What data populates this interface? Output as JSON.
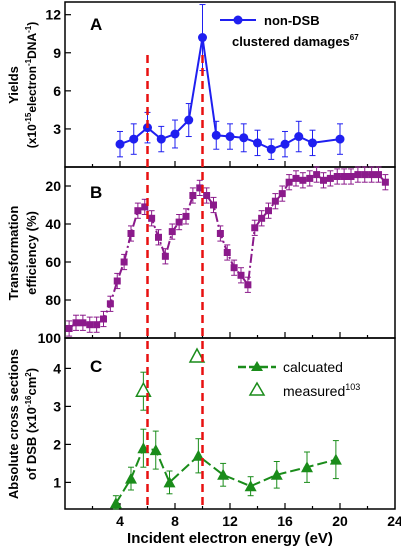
{
  "colors": {
    "blue": "#1f1ff0",
    "purple": "#8b1a8b",
    "green": "#1a8c1a",
    "red_dash": "#e81010",
    "frame": "#000000"
  },
  "chart_data": [
    {
      "panel": "A",
      "type": "line",
      "ylabel_line1": "Yields",
      "ylabel_line2_main": "(x10",
      "ylabel_line2_sup1": "-15",
      "ylabel_line2_mid": "electron",
      "ylabel_line2_sup2": "-1",
      "ylabel_line2_end": "DNA",
      "ylabel_line2_sup3": "-1",
      "ylabel_line2_close": ")",
      "xlim": [
        0,
        24
      ],
      "ylim": [
        0,
        13
      ],
      "yticks": [
        3,
        6,
        9,
        12
      ],
      "ytick_labels": [
        "3",
        "6",
        "9",
        "12"
      ],
      "legend": {
        "line1": "non-DSB",
        "line2": "clustered damages",
        "line2_sup": "67"
      },
      "series": [
        {
          "name": "non-DSB clustered damages",
          "marker": "circle",
          "x": [
            4,
            5,
            6,
            7,
            8,
            9,
            10,
            11,
            12,
            13,
            14,
            15,
            16,
            17,
            18,
            20
          ],
          "y": [
            1.8,
            2.2,
            3.1,
            2.2,
            2.6,
            3.7,
            10.2,
            2.5,
            2.4,
            2.3,
            1.9,
            1.4,
            1.8,
            2.4,
            1.9,
            2.2
          ],
          "err": [
            1.0,
            1.2,
            1.2,
            1.0,
            1.1,
            1.3,
            2.6,
            1.1,
            1.0,
            1.1,
            1.0,
            0.8,
            1.0,
            1.2,
            1.0,
            1.2
          ]
        }
      ]
    },
    {
      "panel": "B",
      "type": "line",
      "ylabel_line1": "Transformation",
      "ylabel_line2": "efficiency (%)",
      "xlim": [
        0,
        24
      ],
      "ylim": [
        100,
        10
      ],
      "yticks": [
        20,
        40,
        60,
        80,
        100
      ],
      "ytick_labels": [
        "20",
        "40",
        "60",
        "80",
        "100"
      ],
      "series": [
        {
          "marker": "square",
          "x": [
            0.3,
            0.8,
            1.3,
            1.8,
            2.3,
            2.8,
            3.3,
            3.8,
            4.3,
            4.8,
            5.3,
            5.8,
            6.3,
            6.8,
            7.3,
            7.8,
            8.3,
            8.8,
            9.3,
            9.8,
            10.3,
            10.8,
            11.3,
            11.8,
            12.3,
            12.8,
            13.3,
            13.8,
            14.3,
            14.8,
            15.3,
            15.8,
            16.3,
            16.8,
            17.3,
            17.8,
            18.3,
            18.8,
            19.3,
            19.8,
            20.3,
            20.8,
            21.3,
            21.8,
            22.3,
            22.8,
            23.3
          ],
          "y": [
            95,
            92,
            92,
            93,
            93,
            90,
            82,
            70,
            60,
            45,
            33,
            31,
            37,
            47,
            57,
            44,
            39,
            36,
            25,
            21,
            25,
            30,
            45,
            55,
            63,
            67,
            72,
            42,
            37,
            33,
            28,
            24,
            18,
            16,
            17,
            16,
            14,
            17,
            16,
            15,
            15,
            15,
            14,
            14,
            14,
            14,
            18
          ],
          "err": [
            4,
            4,
            4,
            4,
            4,
            4,
            4,
            4,
            4,
            4,
            4,
            4,
            4,
            4,
            4,
            4,
            4,
            4,
            4,
            4,
            4,
            4,
            4,
            4,
            4,
            4,
            4,
            4,
            4,
            4,
            4,
            4,
            4,
            4,
            4,
            4,
            4,
            4,
            4,
            4,
            4,
            4,
            4,
            4,
            4,
            4,
            4
          ]
        }
      ]
    },
    {
      "panel": "C",
      "type": "line",
      "ylabel_line1": "Absolute cross sections",
      "ylabel_line2_main": "of DSB (x10",
      "ylabel_line2_sup": "-16",
      "ylabel_line2_mid": "cm",
      "ylabel_line2_sup2": "2",
      "ylabel_line2_close": ")",
      "xlabel": "Incident electron energy (eV)",
      "xlim": [
        0,
        24
      ],
      "ylim": [
        0.3,
        4.8
      ],
      "yticks": [
        1,
        2,
        3,
        4
      ],
      "ytick_labels": [
        "1",
        "2",
        "3",
        "4"
      ],
      "xticks": [
        4,
        8,
        12,
        16,
        20,
        24
      ],
      "xtick_labels": [
        "4",
        "8",
        "12",
        "16",
        "20",
        "24"
      ],
      "legend": {
        "calculated": "calcuated",
        "measured": "measured",
        "measured_sup": "103"
      },
      "series": [
        {
          "name": "calcuated",
          "marker": "filled-triangle",
          "x": [
            3.7,
            4.8,
            5.7,
            6.6,
            7.6,
            9.7,
            11.5,
            13.5,
            15.4,
            17.6,
            19.7
          ],
          "y": [
            0.45,
            1.1,
            1.9,
            1.85,
            1.0,
            1.7,
            1.2,
            0.9,
            1.2,
            1.4,
            1.6
          ],
          "err": [
            0.2,
            0.3,
            0.5,
            0.5,
            0.3,
            0.45,
            0.3,
            0.25,
            0.35,
            0.4,
            0.5
          ]
        },
        {
          "name": "measured",
          "marker": "open-triangle",
          "x": [
            5.7,
            9.6
          ],
          "y": [
            3.4,
            4.3
          ],
          "err": [
            0.5,
            0.0
          ]
        }
      ]
    }
  ],
  "panel_labels": [
    "A",
    "B",
    "C"
  ],
  "vlines_x": [
    6,
    10
  ]
}
